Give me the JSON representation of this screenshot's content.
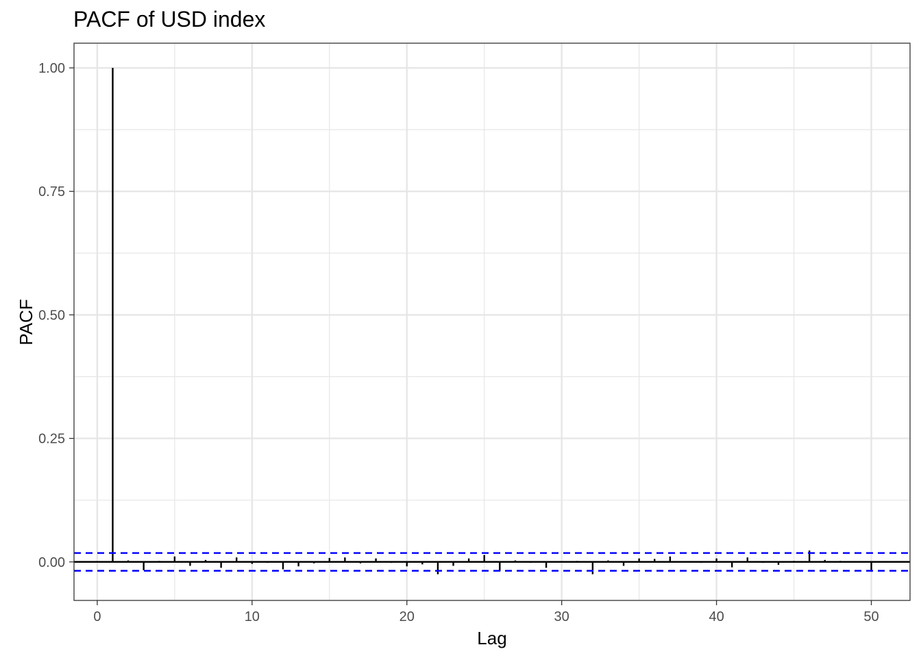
{
  "chart_data": {
    "type": "bar",
    "title": "PACF of USD index",
    "xlabel": "Lag",
    "ylabel": "PACF",
    "xlim": [
      -1.5,
      52.5
    ],
    "ylim": [
      -0.078,
      1.05
    ],
    "x_ticks": [
      0,
      10,
      20,
      30,
      40,
      50
    ],
    "x_tick_labels": [
      "0",
      "10",
      "20",
      "30",
      "40",
      "50"
    ],
    "y_ticks": [
      0.0,
      0.25,
      0.5,
      0.75,
      1.0
    ],
    "y_tick_labels": [
      "0.00",
      "0.25",
      "0.50",
      "0.75",
      "1.00"
    ],
    "y_minor_ticks": [
      0.125,
      0.375,
      0.625,
      0.875
    ],
    "x_minor_ticks": [
      5,
      15,
      25,
      35,
      45
    ],
    "grid": true,
    "confidence_bounds": [
      0.018,
      -0.018
    ],
    "series": [
      {
        "lags": [
          1,
          2,
          3,
          4,
          5,
          6,
          7,
          8,
          9,
          10,
          11,
          12,
          13,
          14,
          15,
          16,
          17,
          18,
          19,
          20,
          21,
          22,
          23,
          24,
          25,
          26,
          27,
          28,
          29,
          30,
          31,
          32,
          33,
          34,
          35,
          36,
          37,
          38,
          39,
          40,
          41,
          42,
          43,
          44,
          45,
          46,
          47,
          48,
          49,
          50
        ],
        "values": [
          1.0,
          0.003,
          -0.017,
          0.002,
          0.011,
          -0.008,
          0.004,
          -0.012,
          0.009,
          -0.004,
          -0.002,
          -0.015,
          -0.009,
          -0.003,
          0.008,
          0.009,
          -0.003,
          0.007,
          -0.002,
          -0.009,
          -0.005,
          -0.025,
          -0.008,
          0.007,
          0.014,
          -0.019,
          0.003,
          -0.002,
          -0.012,
          -0.001,
          0.002,
          -0.025,
          0.003,
          -0.008,
          0.007,
          0.006,
          0.011,
          0.001,
          -0.002,
          0.007,
          -0.011,
          0.009,
          -0.002,
          -0.006,
          0.002,
          0.023,
          0.004,
          0.002,
          0.001,
          -0.02
        ]
      }
    ],
    "colors": {
      "bars": "#000000",
      "bounds": "#0000ff",
      "grid": "#e6e6e6",
      "border": "#333333"
    }
  }
}
